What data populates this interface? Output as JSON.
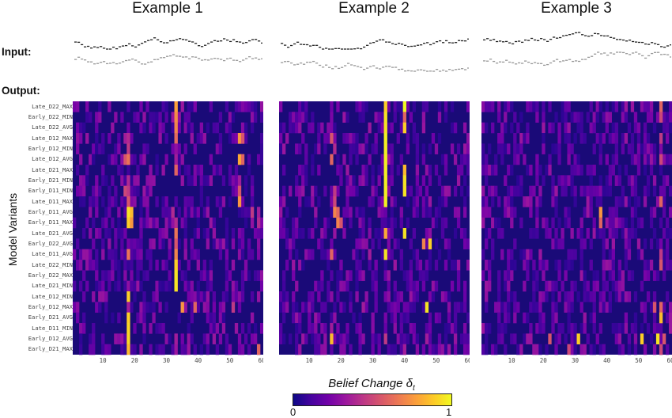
{
  "figure": {
    "input_label": "Input:",
    "output_label": "Output:",
    "y_axis_label": "Model Variants",
    "colorbar": {
      "title": "Belief Change",
      "symbol": "δ",
      "subscript": "t",
      "min_label": "0",
      "max_label": "1",
      "colormap": [
        "#0d0887",
        "#46039f",
        "#7201a8",
        "#9c179e",
        "#bd3786",
        "#d8576b",
        "#ed7953",
        "#fb9f3a",
        "#fdca26",
        "#f0f921"
      ]
    },
    "heatmap_background": "#1a0a78",
    "input_colors": {
      "top": "#222222",
      "bottom": "#999999"
    }
  },
  "chart_data": [
    {
      "type": "heatmap",
      "title": "Example 1",
      "xlabel": "",
      "ylabel": "Model Variants",
      "x_range": [
        1,
        60
      ],
      "x_ticks": [
        10,
        20,
        30,
        40,
        50,
        60
      ],
      "rows": [
        "Late_D22_MAX",
        "Early_D22_MIN",
        "Late_D22_AVG",
        "Late_D12_MAX",
        "Early_D12_MIN",
        "Late_D12_AVG",
        "Late_D21_MAX",
        "Early_D21_MIN",
        "Early_D11_MIN",
        "Late_D11_MAX",
        "Early_D11_AVG",
        "Early_D11_MAX",
        "Late_D21_AVG",
        "Early_D22_AVG",
        "Late_D11_AVG",
        "Late_D22_MIN",
        "Early_D22_MAX",
        "Late_D21_MIN",
        "Late_D12_MIN",
        "Early_D12_MAX",
        "Early_D21_AVG",
        "Late_D11_MIN",
        "Early_D12_AVG",
        "Early_D21_MAX"
      ],
      "value_range": [
        0,
        1
      ],
      "hot_cells": [
        {
          "row": 0,
          "col": 33,
          "v": 0.78
        },
        {
          "row": 1,
          "col": 33,
          "v": 0.72
        },
        {
          "row": 2,
          "col": 33,
          "v": 0.7
        },
        {
          "row": 3,
          "col": 33,
          "v": 0.62
        },
        {
          "row": 3,
          "col": 17,
          "v": 0.35
        },
        {
          "row": 3,
          "col": 18,
          "v": 0.4
        },
        {
          "row": 3,
          "col": 53,
          "v": 0.75
        },
        {
          "row": 3,
          "col": 54,
          "v": 0.55
        },
        {
          "row": 4,
          "col": 18,
          "v": 0.45
        },
        {
          "row": 4,
          "col": 33,
          "v": 0.3
        },
        {
          "row": 5,
          "col": 17,
          "v": 0.55
        },
        {
          "row": 5,
          "col": 18,
          "v": 0.65
        },
        {
          "row": 5,
          "col": 33,
          "v": 0.35
        },
        {
          "row": 5,
          "col": 53,
          "v": 0.8
        },
        {
          "row": 5,
          "col": 54,
          "v": 0.6
        },
        {
          "row": 6,
          "col": 33,
          "v": 0.6
        },
        {
          "row": 7,
          "col": 18,
          "v": 0.4
        },
        {
          "row": 7,
          "col": 53,
          "v": 0.35
        },
        {
          "row": 8,
          "col": 17,
          "v": 0.5
        },
        {
          "row": 8,
          "col": 18,
          "v": 0.45
        },
        {
          "row": 8,
          "col": 53,
          "v": 0.55
        },
        {
          "row": 9,
          "col": 18,
          "v": 0.55
        },
        {
          "row": 9,
          "col": 53,
          "v": 0.75
        },
        {
          "row": 10,
          "col": 18,
          "v": 0.95
        },
        {
          "row": 10,
          "col": 19,
          "v": 0.85
        },
        {
          "row": 10,
          "col": 32,
          "v": 0.4
        },
        {
          "row": 10,
          "col": 57,
          "v": 0.45
        },
        {
          "row": 10,
          "col": 59,
          "v": 0.35
        },
        {
          "row": 11,
          "col": 18,
          "v": 0.9
        },
        {
          "row": 11,
          "col": 19,
          "v": 0.75
        },
        {
          "row": 11,
          "col": 33,
          "v": 0.4
        },
        {
          "row": 11,
          "col": 59,
          "v": 0.4
        },
        {
          "row": 12,
          "col": 33,
          "v": 0.65
        },
        {
          "row": 13,
          "col": 33,
          "v": 0.55
        },
        {
          "row": 14,
          "col": 18,
          "v": 0.65
        },
        {
          "row": 14,
          "col": 33,
          "v": 0.7
        },
        {
          "row": 15,
          "col": 33,
          "v": 0.9
        },
        {
          "row": 16,
          "col": 33,
          "v": 0.95
        },
        {
          "row": 17,
          "col": 33,
          "v": 0.95
        },
        {
          "row": 18,
          "col": 18,
          "v": 0.9
        },
        {
          "row": 19,
          "col": 35,
          "v": 0.75
        },
        {
          "row": 19,
          "col": 39,
          "v": 0.6
        },
        {
          "row": 19,
          "col": 51,
          "v": 0.45
        },
        {
          "row": 19,
          "col": 18,
          "v": 0.35
        },
        {
          "row": 20,
          "col": 18,
          "v": 0.9
        },
        {
          "row": 20,
          "col": 57,
          "v": 0.3
        },
        {
          "row": 21,
          "col": 18,
          "v": 0.92
        },
        {
          "row": 22,
          "col": 18,
          "v": 0.92
        },
        {
          "row": 22,
          "col": 33,
          "v": 0.35
        },
        {
          "row": 23,
          "col": 18,
          "v": 0.85
        },
        {
          "row": 23,
          "col": 59,
          "v": 0.6
        }
      ]
    },
    {
      "type": "heatmap",
      "title": "Example 2",
      "xlabel": "",
      "ylabel": "",
      "x_range": [
        1,
        60
      ],
      "x_ticks": [
        10,
        20,
        30,
        40,
        50,
        60
      ],
      "value_range": [
        0,
        1
      ],
      "hot_cells": [
        {
          "row": 0,
          "col": 34,
          "v": 0.9
        },
        {
          "row": 0,
          "col": 40,
          "v": 1.0
        },
        {
          "row": 1,
          "col": 34,
          "v": 0.95
        },
        {
          "row": 1,
          "col": 40,
          "v": 0.6
        },
        {
          "row": 2,
          "col": 34,
          "v": 0.95
        },
        {
          "row": 2,
          "col": 40,
          "v": 0.9
        },
        {
          "row": 3,
          "col": 34,
          "v": 0.98
        },
        {
          "row": 3,
          "col": 17,
          "v": 0.55
        },
        {
          "row": 4,
          "col": 34,
          "v": 0.98
        },
        {
          "row": 4,
          "col": 18,
          "v": 0.4
        },
        {
          "row": 5,
          "col": 34,
          "v": 0.98
        },
        {
          "row": 5,
          "col": 17,
          "v": 0.6
        },
        {
          "row": 6,
          "col": 34,
          "v": 0.98
        },
        {
          "row": 6,
          "col": 40,
          "v": 0.85
        },
        {
          "row": 7,
          "col": 34,
          "v": 0.98
        },
        {
          "row": 7,
          "col": 40,
          "v": 0.95
        },
        {
          "row": 8,
          "col": 34,
          "v": 0.98
        },
        {
          "row": 8,
          "col": 18,
          "v": 0.45
        },
        {
          "row": 8,
          "col": 40,
          "v": 0.95
        },
        {
          "row": 9,
          "col": 34,
          "v": 0.98
        },
        {
          "row": 9,
          "col": 18,
          "v": 0.5
        },
        {
          "row": 10,
          "col": 18,
          "v": 0.7
        },
        {
          "row": 10,
          "col": 19,
          "v": 0.6
        },
        {
          "row": 11,
          "col": 19,
          "v": 0.7
        },
        {
          "row": 11,
          "col": 20,
          "v": 0.55
        },
        {
          "row": 12,
          "col": 34,
          "v": 0.8
        },
        {
          "row": 12,
          "col": 40,
          "v": 0.95
        },
        {
          "row": 13,
          "col": 46,
          "v": 0.7
        },
        {
          "row": 13,
          "col": 48,
          "v": 0.9
        },
        {
          "row": 14,
          "col": 17,
          "v": 0.6
        },
        {
          "row": 14,
          "col": 34,
          "v": 0.95
        },
        {
          "row": 14,
          "col": 29,
          "v": 0.35
        },
        {
          "row": 19,
          "col": 47,
          "v": 0.95
        },
        {
          "row": 19,
          "col": 27,
          "v": 0.35
        },
        {
          "row": 20,
          "col": 18,
          "v": 0.3
        },
        {
          "row": 21,
          "col": 17,
          "v": 0.35
        },
        {
          "row": 22,
          "col": 17,
          "v": 0.85
        },
        {
          "row": 22,
          "col": 34,
          "v": 0.45
        },
        {
          "row": 22,
          "col": 47,
          "v": 0.35
        },
        {
          "row": 23,
          "col": 40,
          "v": 0.35
        }
      ]
    },
    {
      "type": "heatmap",
      "title": "Example 3",
      "xlabel": "",
      "ylabel": "",
      "x_range": [
        1,
        60
      ],
      "x_ticks": [
        10,
        20,
        30,
        40,
        50,
        60
      ],
      "value_range": [
        0,
        1
      ],
      "hot_cells": [
        {
          "row": 0,
          "col": 57,
          "v": 0.6
        },
        {
          "row": 1,
          "col": 57,
          "v": 0.5
        },
        {
          "row": 3,
          "col": 57,
          "v": 0.45
        },
        {
          "row": 5,
          "col": 57,
          "v": 0.5
        },
        {
          "row": 9,
          "col": 57,
          "v": 0.6
        },
        {
          "row": 10,
          "col": 38,
          "v": 0.75
        },
        {
          "row": 11,
          "col": 38,
          "v": 0.6
        },
        {
          "row": 14,
          "col": 57,
          "v": 0.45
        },
        {
          "row": 15,
          "col": 57,
          "v": 0.55
        },
        {
          "row": 19,
          "col": 55,
          "v": 0.55
        },
        {
          "row": 19,
          "col": 57,
          "v": 0.6
        },
        {
          "row": 20,
          "col": 57,
          "v": 0.85
        },
        {
          "row": 22,
          "col": 22,
          "v": 0.55
        },
        {
          "row": 22,
          "col": 31,
          "v": 0.9
        },
        {
          "row": 22,
          "col": 51,
          "v": 0.9
        },
        {
          "row": 22,
          "col": 56,
          "v": 0.95
        },
        {
          "row": 22,
          "col": 58,
          "v": 0.55
        },
        {
          "row": 23,
          "col": 28,
          "v": 0.5
        },
        {
          "row": 23,
          "col": 57,
          "v": 0.5
        }
      ]
    }
  ]
}
